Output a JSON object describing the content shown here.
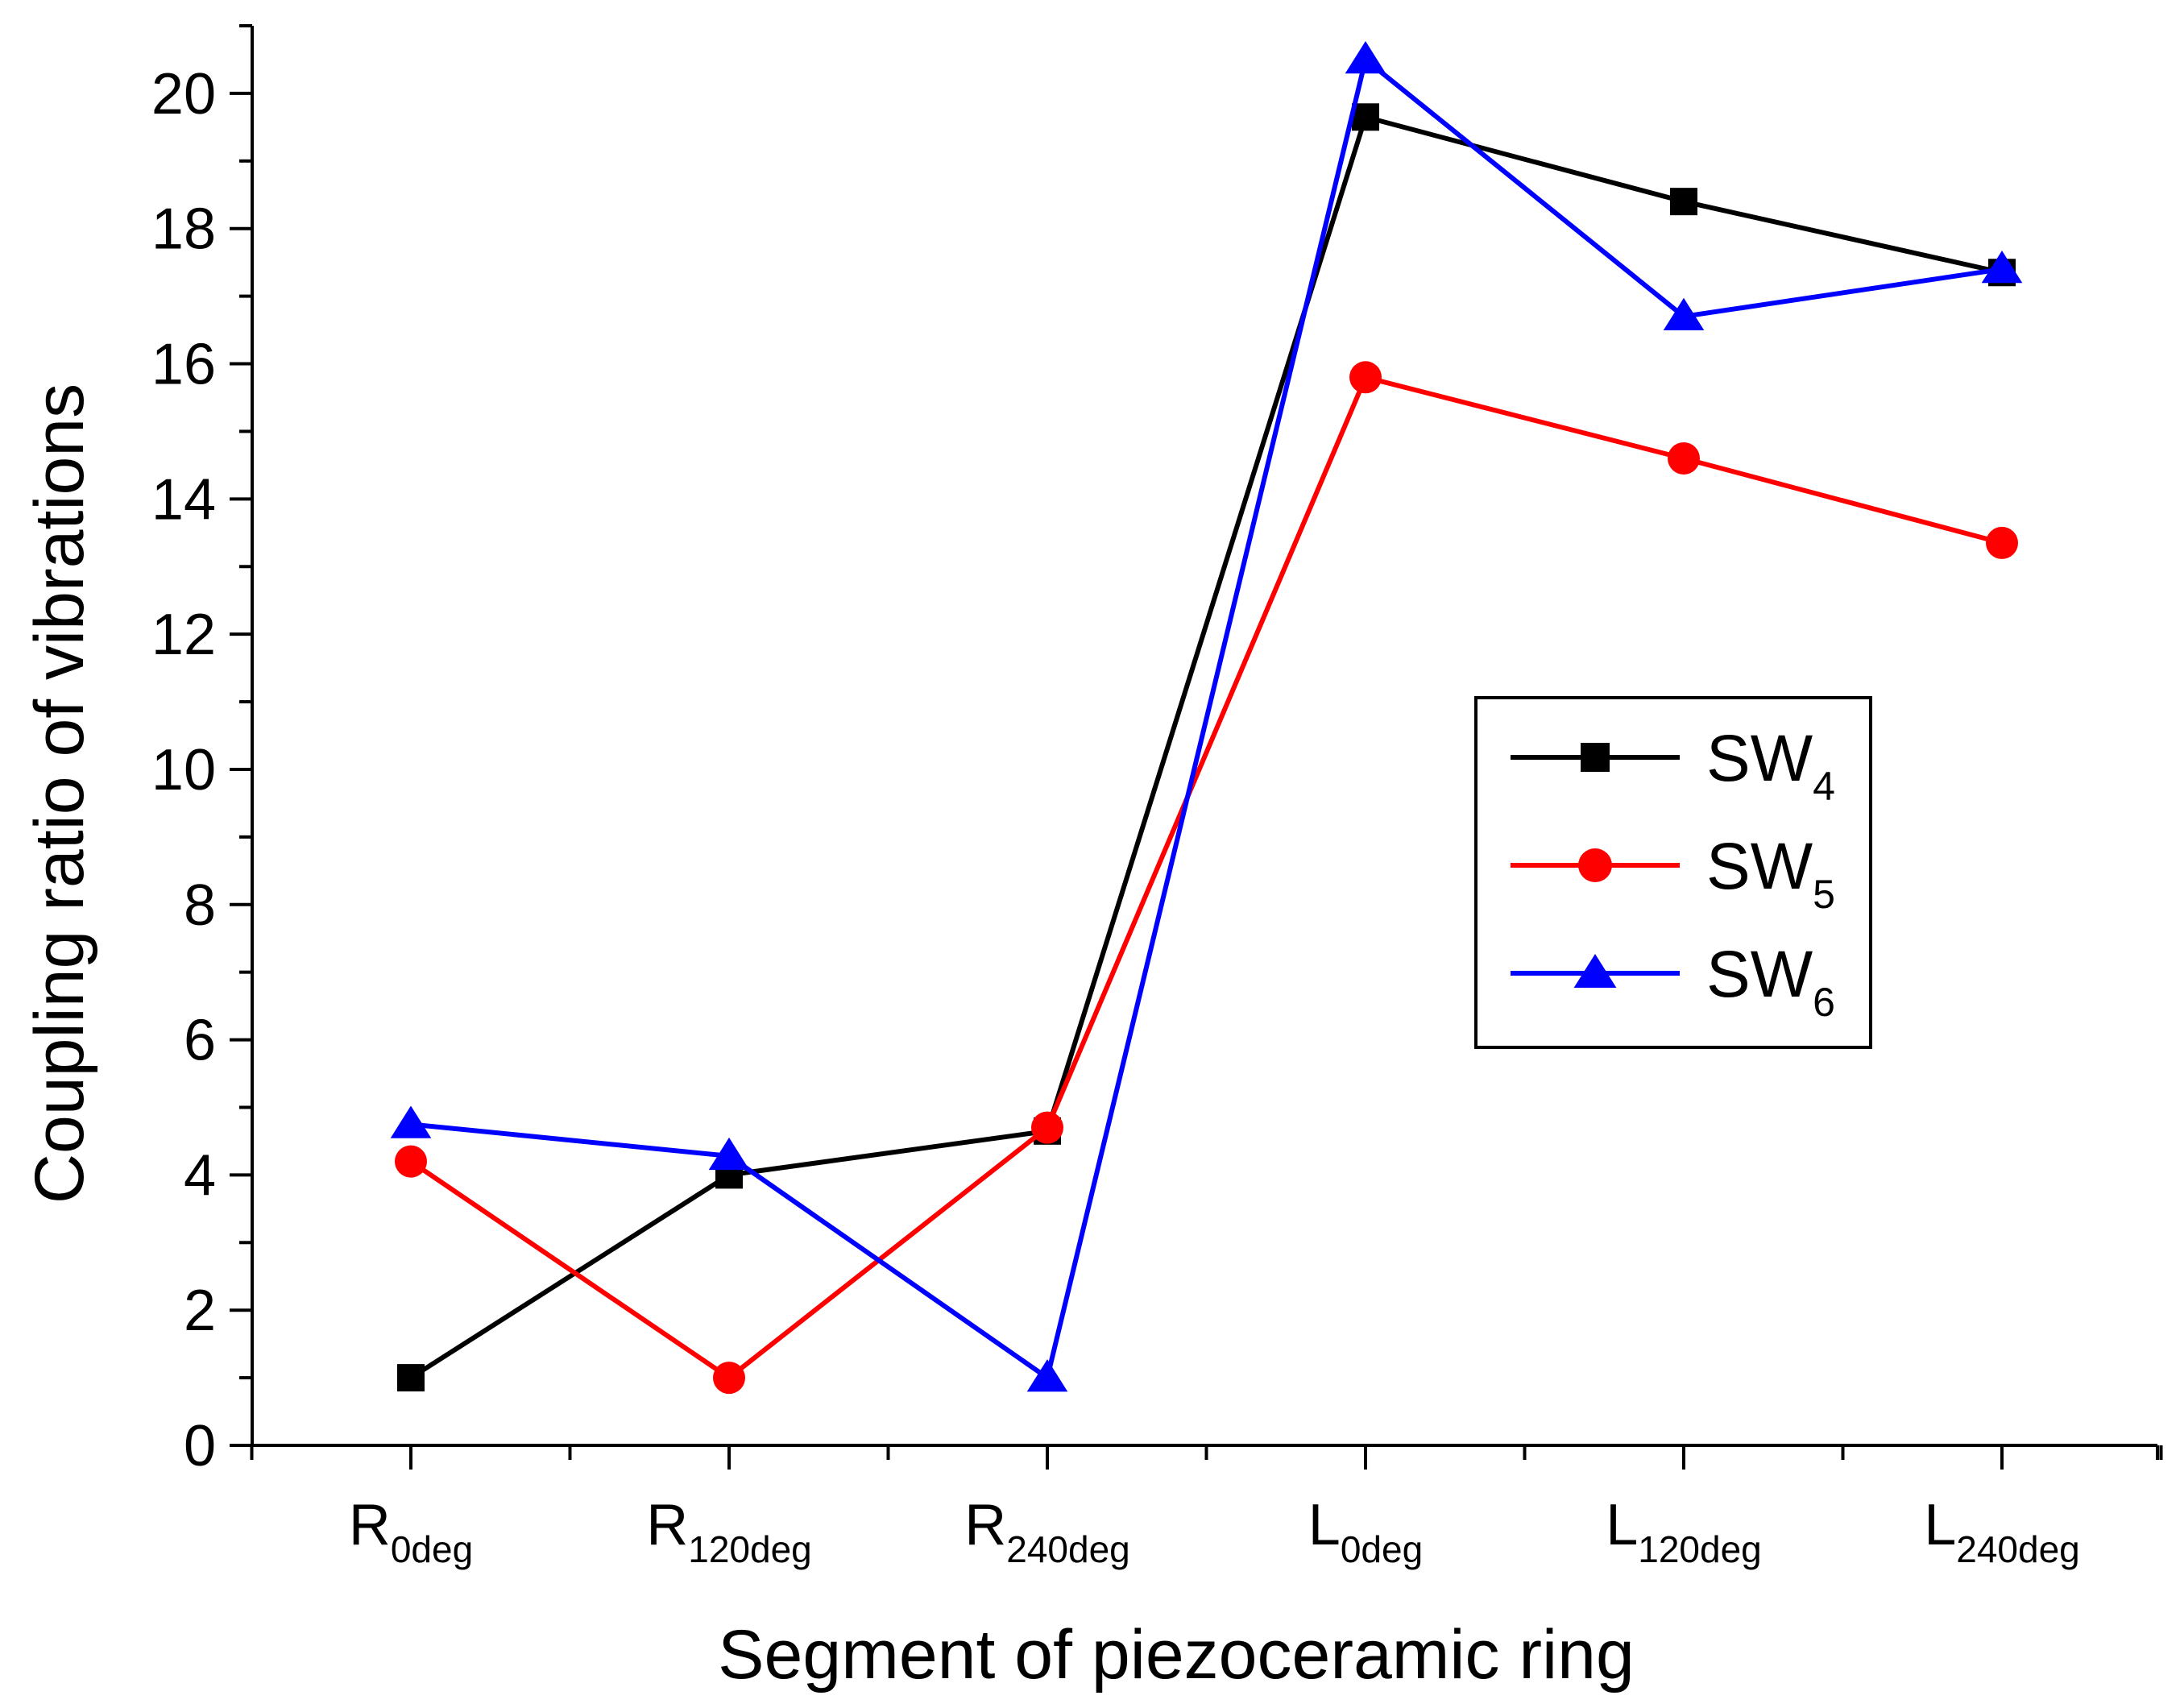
{
  "chart_data": {
    "type": "line",
    "title": "",
    "xlabel": "Segment of piezoceramic ring",
    "ylabel": "Coupling ratio of vibrations",
    "categories": [
      {
        "main": "R",
        "sub": "0deg"
      },
      {
        "main": "R",
        "sub": "120deg"
      },
      {
        "main": "R",
        "sub": "240deg"
      },
      {
        "main": "L",
        "sub": "0deg"
      },
      {
        "main": "L",
        "sub": "120deg"
      },
      {
        "main": "L",
        "sub": "240deg"
      }
    ],
    "ylim": [
      0,
      21
    ],
    "yticks": [
      0,
      2,
      4,
      6,
      8,
      10,
      12,
      14,
      16,
      18,
      20
    ],
    "y_minor_step": 1,
    "grid": false,
    "legend_position": "right-middle",
    "series": [
      {
        "name": "SW",
        "sub": "4",
        "color": "#000000",
        "marker": "square",
        "values": [
          1.0,
          4.0,
          4.65,
          19.65,
          18.4,
          17.35
        ]
      },
      {
        "name": "SW",
        "sub": "5",
        "color": "#ff0000",
        "marker": "circle",
        "values": [
          4.2,
          1.0,
          4.7,
          15.8,
          14.6,
          13.35
        ]
      },
      {
        "name": "SW",
        "sub": "6",
        "color": "#0000ff",
        "marker": "triangle",
        "values": [
          4.75,
          4.28,
          1.0,
          20.5,
          16.7,
          17.4
        ]
      }
    ]
  }
}
